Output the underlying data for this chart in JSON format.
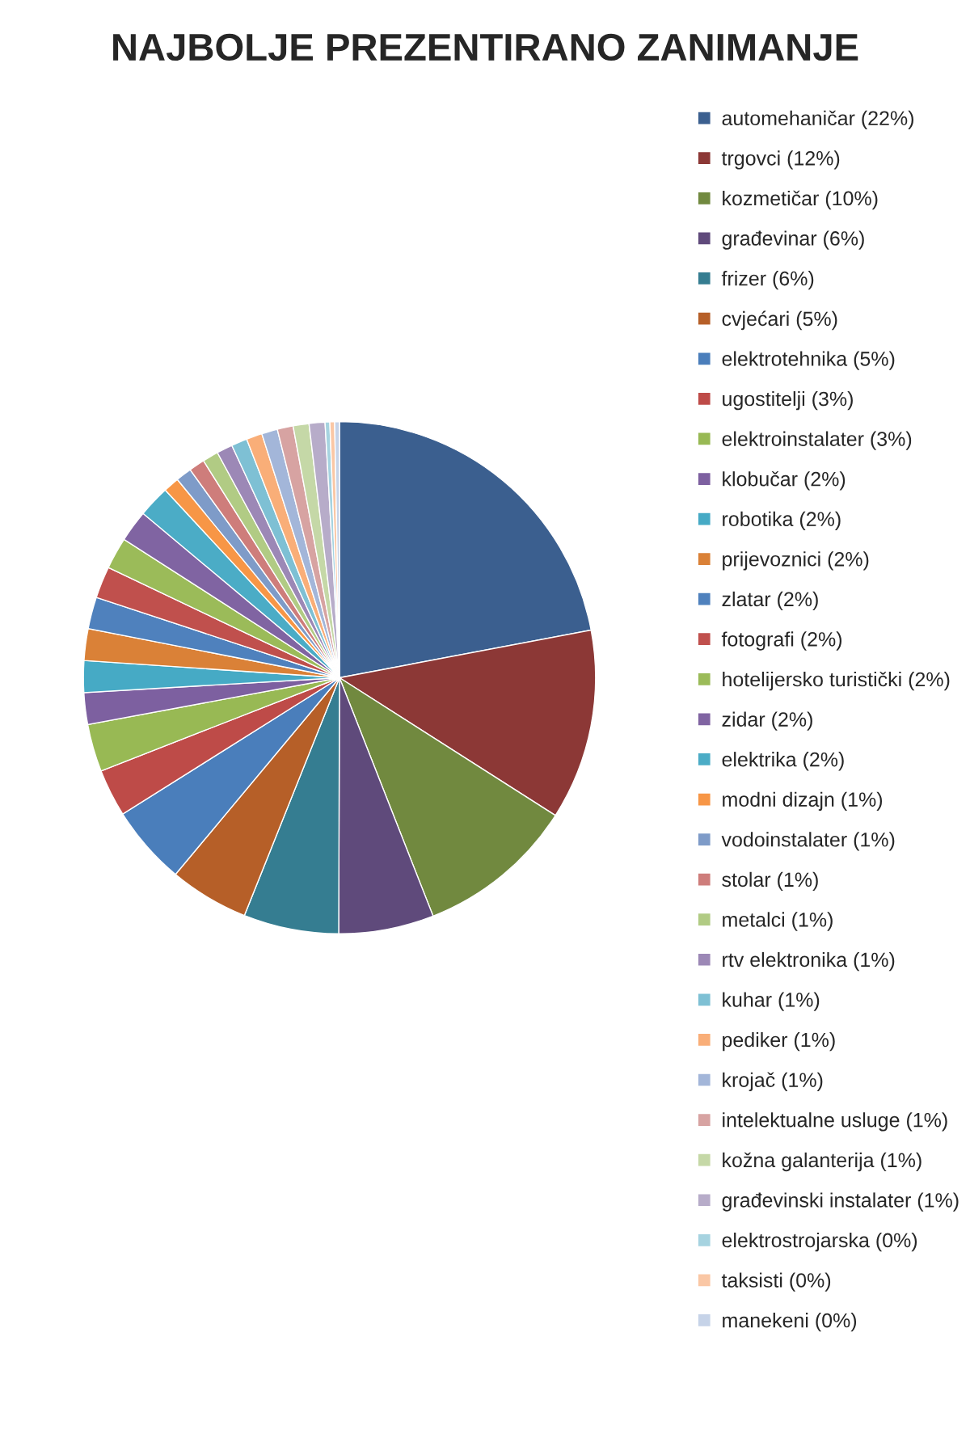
{
  "chart_data": {
    "type": "pie",
    "title": "NAJBOLJE PREZENTIRANO ZANIMANJE",
    "legend": "right",
    "categories": [
      "automehaničar (22%)",
      "trgovci (12%)",
      "kozmetičar (10%)",
      "građevinar (6%)",
      "frizer (6%)",
      "cvjećari (5%)",
      "elektrotehnika (5%)",
      "ugostitelji (3%)",
      "elektroinstalater (3%)",
      "klobučar (2%)",
      "robotika (2%)",
      "prijevoznici (2%)",
      "zlatar (2%)",
      "fotografi (2%)",
      "hotelijersko turistički (2%)",
      "zidar (2%)",
      "elektrika (2%)",
      "modni dizajn (1%)",
      "vodoinstalater (1%)",
      "stolar (1%)",
      "metalci (1%)",
      "rtv elektronika (1%)",
      "kuhar (1%)",
      "pediker (1%)",
      "krojač (1%)",
      "intelektualne usluge (1%)",
      "kožna galanterija (1%)",
      "građevinski instalater (1%)",
      "elektrostrojarska (0%)",
      "taksisti (0%)",
      "manekeni (0%)"
    ],
    "values": [
      22,
      12,
      10,
      6,
      6,
      5,
      5,
      3,
      3,
      2,
      2,
      2,
      2,
      2,
      2,
      2,
      2,
      1,
      1,
      1,
      1,
      1,
      1,
      1,
      1,
      1,
      1,
      1,
      0.3,
      0.3,
      0.3
    ],
    "colors": [
      "#3b5f8f",
      "#8c3836",
      "#71893f",
      "#5f4a7b",
      "#357d91",
      "#b65f28",
      "#4a7ebb",
      "#be4b48",
      "#98b954",
      "#7d60a0",
      "#46aac5",
      "#da8137",
      "#4f81bd",
      "#c0504d",
      "#9bbb59",
      "#8064a2",
      "#4bacc6",
      "#f79646",
      "#7e9bc8",
      "#ce7d7b",
      "#b1cb84",
      "#9c88b6",
      "#7ec0d4",
      "#f9ae78",
      "#a3b6d9",
      "#d7a3a2",
      "#c5d8a7",
      "#b7acc9",
      "#a6d3e0",
      "#fac7a5",
      "#c6d3e8"
    ]
  }
}
